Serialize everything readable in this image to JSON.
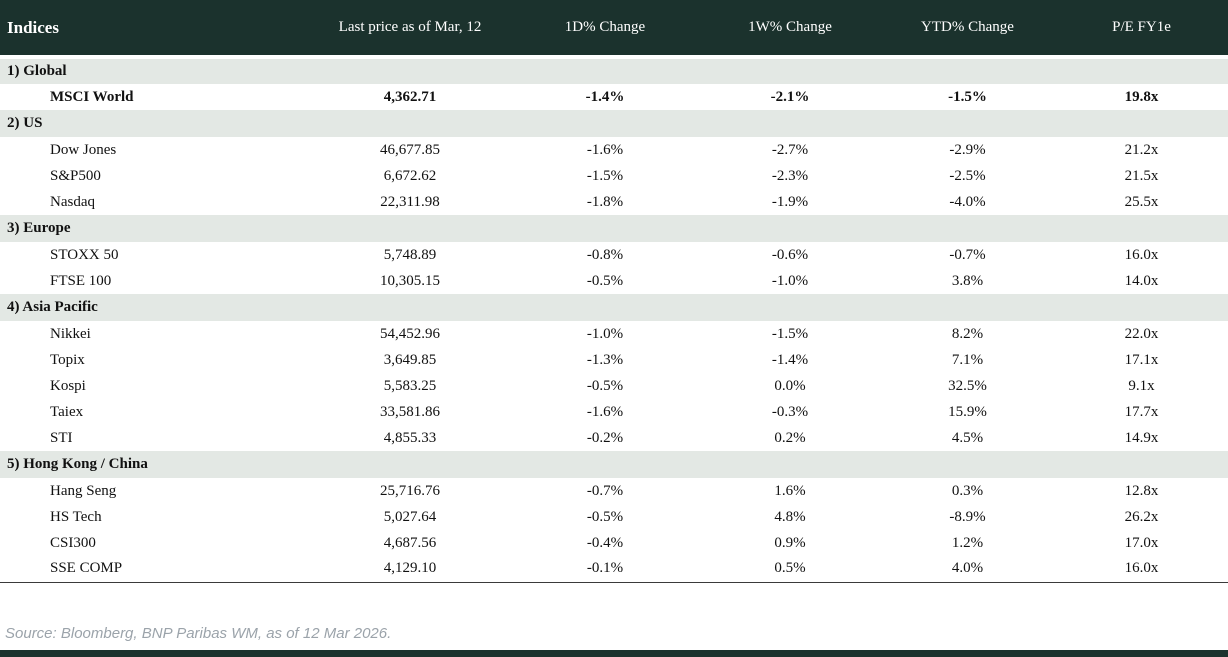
{
  "chart_data": {
    "type": "table",
    "title": "Indices",
    "columns": [
      "Indices",
      "Last price as of Mar, 12",
      "1D% Change",
      "1W% Change",
      "YTD% Change",
      "P/E FY1e"
    ],
    "sections": [
      {
        "label": "1) Global",
        "rows": [
          {
            "name": "MSCI World",
            "bold": true,
            "values": [
              "4,362.71",
              "-1.4%",
              "-2.1%",
              "-1.5%",
              "19.8x"
            ],
            "colors": [
              "default",
              "negative",
              "negative",
              "negative",
              "default"
            ]
          }
        ]
      },
      {
        "label": "2) US",
        "rows": [
          {
            "name": "Dow Jones",
            "bold": false,
            "values": [
              "46,677.85",
              "-1.6%",
              "-2.7%",
              "-2.9%",
              "21.2x"
            ],
            "colors": [
              "default",
              "negative",
              "negative",
              "negative",
              "default"
            ]
          },
          {
            "name": "S&P500",
            "bold": false,
            "values": [
              "6,672.62",
              "-1.5%",
              "-2.3%",
              "-2.5%",
              "21.5x"
            ],
            "colors": [
              "default",
              "negative",
              "negative",
              "negative",
              "default"
            ]
          },
          {
            "name": "Nasdaq",
            "bold": false,
            "values": [
              "22,311.98",
              "-1.8%",
              "-1.9%",
              "-4.0%",
              "25.5x"
            ],
            "colors": [
              "default",
              "negative",
              "negative",
              "negative",
              "default"
            ]
          }
        ]
      },
      {
        "label": "3) Europe",
        "rows": [
          {
            "name": "STOXX 50",
            "bold": false,
            "values": [
              "5,748.89",
              "-0.8%",
              "-0.6%",
              "-0.7%",
              "16.0x"
            ],
            "colors": [
              "default",
              "negative",
              "negative",
              "negative",
              "default"
            ]
          },
          {
            "name": "FTSE 100",
            "bold": false,
            "values": [
              "10,305.15",
              "-0.5%",
              "-1.0%",
              "3.8%",
              "14.0x"
            ],
            "colors": [
              "default",
              "negative",
              "negative",
              "positive",
              "default"
            ]
          }
        ]
      },
      {
        "label": "4) Asia Pacific",
        "rows": [
          {
            "name": "Nikkei",
            "bold": false,
            "values": [
              "54,452.96",
              "-1.0%",
              "-1.5%",
              "8.2%",
              "22.0x"
            ],
            "colors": [
              "default",
              "negative",
              "negative",
              "positive",
              "default"
            ]
          },
          {
            "name": "Topix",
            "bold": false,
            "values": [
              "3,649.85",
              "-1.3%",
              "-1.4%",
              "7.1%",
              "17.1x"
            ],
            "colors": [
              "default",
              "negative",
              "negative",
              "positive",
              "default"
            ]
          },
          {
            "name": "Kospi",
            "bold": false,
            "values": [
              "5,583.25",
              "-0.5%",
              "0.0%",
              "32.5%",
              "9.1x"
            ],
            "colors": [
              "default",
              "negative",
              "negative",
              "positive",
              "default"
            ]
          },
          {
            "name": "Taiex",
            "bold": false,
            "values": [
              "33,581.86",
              "-1.6%",
              "-0.3%",
              "15.9%",
              "17.7x"
            ],
            "colors": [
              "default",
              "negative",
              "negative",
              "positive",
              "default"
            ]
          },
          {
            "name": "STI",
            "bold": false,
            "values": [
              "4,855.33",
              "-0.2%",
              "0.2%",
              "4.5%",
              "14.9x"
            ],
            "colors": [
              "default",
              "negative",
              "positive",
              "positive",
              "default"
            ]
          }
        ]
      },
      {
        "label": "5) Hong Kong / China",
        "rows": [
          {
            "name": "Hang Seng",
            "bold": false,
            "values": [
              "25,716.76",
              "-0.7%",
              "1.6%",
              "0.3%",
              "12.8x"
            ],
            "colors": [
              "default",
              "negative",
              "positive",
              "positive",
              "default"
            ]
          },
          {
            "name": "HS Tech",
            "bold": false,
            "values": [
              "5,027.64",
              "-0.5%",
              "4.8%",
              "-8.9%",
              "26.2x"
            ],
            "colors": [
              "default",
              "negative",
              "positive",
              "negative",
              "default"
            ]
          },
          {
            "name": "CSI300",
            "bold": false,
            "values": [
              "4,687.56",
              "-0.4%",
              "0.9%",
              "1.2%",
              "17.0x"
            ],
            "colors": [
              "default",
              "negative",
              "positive",
              "positive",
              "default"
            ]
          },
          {
            "name": "SSE COMP",
            "bold": false,
            "values": [
              "4,129.10",
              "-0.1%",
              "0.5%",
              "4.0%",
              "16.0x"
            ],
            "colors": [
              "default",
              "negative",
              "positive",
              "positive",
              "default"
            ]
          }
        ]
      }
    ]
  },
  "footer": {
    "source": "Source: Bloomberg, BNP Paribas WM, as of 12 Mar 2026."
  },
  "colors": {
    "header_bg": "#1b322d",
    "section_bg": "#e3e8e4",
    "negative": "#c00000",
    "positive": "#0a8038",
    "source_text": "#9ba3aa"
  }
}
